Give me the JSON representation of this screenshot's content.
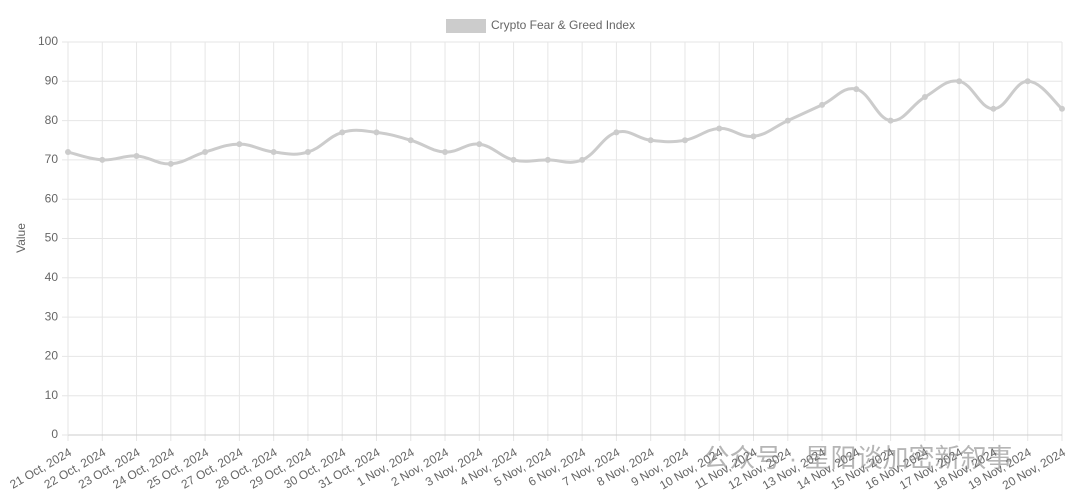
{
  "chart_data": {
    "type": "line",
    "y_label": "Value",
    "categories": [
      "21 Oct, 2024",
      "22 Oct, 2024",
      "23 Oct, 2024",
      "24 Oct, 2024",
      "25 Oct, 2024",
      "27 Oct, 2024",
      "28 Oct, 2024",
      "29 Oct, 2024",
      "30 Oct, 2024",
      "31 Oct, 2024",
      "1 Nov, 2024",
      "2 Nov, 2024",
      "3 Nov, 2024",
      "4 Nov, 2024",
      "5 Nov, 2024",
      "6 Nov, 2024",
      "7 Nov, 2024",
      "8 Nov, 2024",
      "9 Nov, 2024",
      "10 Nov, 2024",
      "11 Nov, 2024",
      "12 Nov, 2024",
      "13 Nov, 2024",
      "14 Nov, 2024",
      "15 Nov, 2024",
      "16 Nov, 2024",
      "17 Nov, 2024",
      "18 Nov, 2024",
      "19 Nov, 2024",
      "20 Nov, 2024"
    ],
    "series": [
      {
        "name": "Crypto Fear & Greed Index",
        "color": "#cccccc",
        "values": [
          72,
          70,
          71,
          69,
          72,
          74,
          72,
          72,
          77,
          77,
          75,
          72,
          74,
          70,
          70,
          70,
          77,
          75,
          75,
          78,
          76,
          80,
          84,
          88,
          80,
          86,
          90,
          83,
          90,
          83
        ]
      }
    ],
    "ylim": [
      0,
      100
    ],
    "yticks": [
      0,
      10,
      20,
      30,
      40,
      50,
      60,
      70,
      80,
      90,
      100
    ],
    "grid": true,
    "legend": "top",
    "watermark": "公众号 · 星阳谈加密新叙事"
  }
}
